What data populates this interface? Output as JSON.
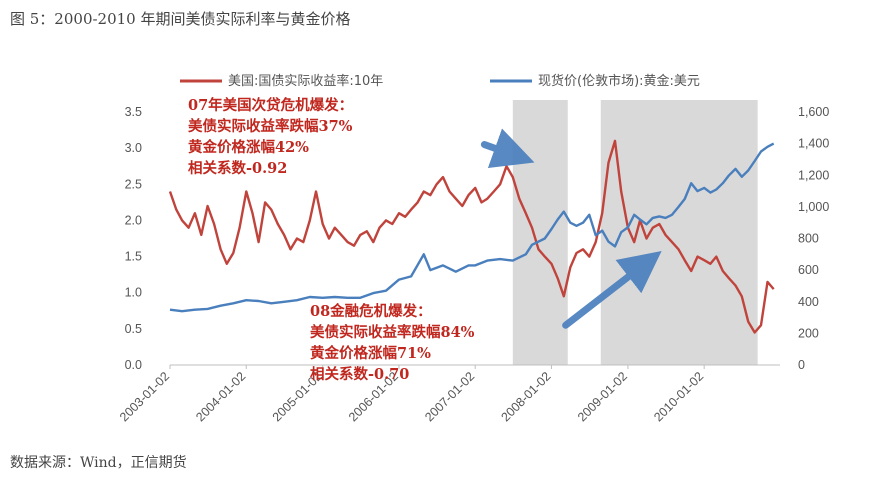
{
  "figure": {
    "title": "图 5：2000-2010 年期间美债实际利率与黄金价格",
    "source": "数据来源：Wind，正信期货"
  },
  "colors": {
    "rate": "#c0433c",
    "gold": "#4a7fbd",
    "shade": "#d9d9d9",
    "annotation": "#c0281f"
  },
  "chart_data": {
    "type": "line",
    "xlim": [
      "2003-01-02",
      "2010-12-31"
    ],
    "x_ticks": [
      "2003-01-02",
      "2004-01-02",
      "2005-01-02",
      "2006-01-02",
      "2007-01-02",
      "2008-01-02",
      "2009-01-02",
      "2010-01-02"
    ],
    "y_left": {
      "lim": [
        0,
        3.5
      ],
      "ticks": [
        "0.0",
        "0.5",
        "1.0",
        "1.5",
        "2.0",
        "2.5",
        "3.0",
        "3.5"
      ]
    },
    "y_right": {
      "lim": [
        0,
        1600
      ],
      "ticks": [
        "0",
        "200",
        "400",
        "600",
        "800",
        "1,000",
        "1,200",
        "1,400",
        "1,600"
      ]
    },
    "legend": {
      "placement": "top"
    },
    "shaded_ranges": [
      [
        "2007-07-01",
        "2008-03-20"
      ],
      [
        "2008-08-25",
        "2010-09-15"
      ]
    ],
    "series": [
      {
        "name": "美国:国债实际收益率:10年",
        "axis": "left",
        "points": [
          [
            "2003-01-02",
            2.4
          ],
          [
            "2003-02-01",
            2.15
          ],
          [
            "2003-03-01",
            2.0
          ],
          [
            "2003-04-01",
            1.9
          ],
          [
            "2003-05-01",
            2.1
          ],
          [
            "2003-06-01",
            1.8
          ],
          [
            "2003-07-01",
            2.2
          ],
          [
            "2003-08-01",
            1.95
          ],
          [
            "2003-09-01",
            1.6
          ],
          [
            "2003-10-01",
            1.4
          ],
          [
            "2003-11-01",
            1.55
          ],
          [
            "2003-12-01",
            1.9
          ],
          [
            "2004-01-02",
            2.4
          ],
          [
            "2004-02-01",
            2.1
          ],
          [
            "2004-03-01",
            1.7
          ],
          [
            "2004-04-01",
            2.25
          ],
          [
            "2004-05-01",
            2.15
          ],
          [
            "2004-06-01",
            1.95
          ],
          [
            "2004-07-01",
            1.8
          ],
          [
            "2004-08-01",
            1.6
          ],
          [
            "2004-09-01",
            1.75
          ],
          [
            "2004-10-01",
            1.7
          ],
          [
            "2004-11-01",
            2.0
          ],
          [
            "2004-12-01",
            2.4
          ],
          [
            "2005-01-02",
            1.95
          ],
          [
            "2005-02-01",
            1.75
          ],
          [
            "2005-03-01",
            1.9
          ],
          [
            "2005-04-01",
            1.8
          ],
          [
            "2005-05-01",
            1.7
          ],
          [
            "2005-06-01",
            1.65
          ],
          [
            "2005-07-01",
            1.8
          ],
          [
            "2005-08-01",
            1.85
          ],
          [
            "2005-09-01",
            1.7
          ],
          [
            "2005-10-01",
            1.9
          ],
          [
            "2005-11-01",
            2.0
          ],
          [
            "2005-12-01",
            1.95
          ],
          [
            "2006-01-02",
            2.1
          ],
          [
            "2006-02-01",
            2.05
          ],
          [
            "2006-03-01",
            2.15
          ],
          [
            "2006-04-01",
            2.25
          ],
          [
            "2006-05-01",
            2.4
          ],
          [
            "2006-06-01",
            2.35
          ],
          [
            "2006-07-01",
            2.5
          ],
          [
            "2006-08-01",
            2.6
          ],
          [
            "2006-09-01",
            2.4
          ],
          [
            "2006-10-01",
            2.3
          ],
          [
            "2006-11-01",
            2.2
          ],
          [
            "2006-12-01",
            2.35
          ],
          [
            "2007-01-02",
            2.45
          ],
          [
            "2007-02-01",
            2.25
          ],
          [
            "2007-03-01",
            2.3
          ],
          [
            "2007-04-01",
            2.4
          ],
          [
            "2007-05-01",
            2.5
          ],
          [
            "2007-06-01",
            2.75
          ],
          [
            "2007-07-01",
            2.6
          ],
          [
            "2007-08-01",
            2.3
          ],
          [
            "2007-09-01",
            2.1
          ],
          [
            "2007-10-01",
            1.9
          ],
          [
            "2007-11-01",
            1.6
          ],
          [
            "2007-12-01",
            1.5
          ],
          [
            "2008-01-02",
            1.4
          ],
          [
            "2008-02-01",
            1.2
          ],
          [
            "2008-03-01",
            0.95
          ],
          [
            "2008-04-01",
            1.35
          ],
          [
            "2008-05-01",
            1.55
          ],
          [
            "2008-06-01",
            1.6
          ],
          [
            "2008-07-01",
            1.5
          ],
          [
            "2008-08-01",
            1.7
          ],
          [
            "2008-09-01",
            2.1
          ],
          [
            "2008-10-01",
            2.8
          ],
          [
            "2008-11-01",
            3.1
          ],
          [
            "2008-12-01",
            2.4
          ],
          [
            "2009-01-02",
            1.9
          ],
          [
            "2009-02-01",
            1.7
          ],
          [
            "2009-03-01",
            2.0
          ],
          [
            "2009-04-01",
            1.75
          ],
          [
            "2009-05-01",
            1.9
          ],
          [
            "2009-06-01",
            1.95
          ],
          [
            "2009-07-01",
            1.8
          ],
          [
            "2009-08-01",
            1.7
          ],
          [
            "2009-09-01",
            1.6
          ],
          [
            "2009-10-01",
            1.45
          ],
          [
            "2009-11-01",
            1.3
          ],
          [
            "2009-12-01",
            1.5
          ],
          [
            "2010-01-02",
            1.45
          ],
          [
            "2010-02-01",
            1.4
          ],
          [
            "2010-03-01",
            1.5
          ],
          [
            "2010-04-01",
            1.3
          ],
          [
            "2010-05-01",
            1.2
          ],
          [
            "2010-06-01",
            1.1
          ],
          [
            "2010-07-01",
            0.95
          ],
          [
            "2010-08-01",
            0.6
          ],
          [
            "2010-09-01",
            0.45
          ],
          [
            "2010-10-01",
            0.55
          ],
          [
            "2010-11-01",
            1.15
          ],
          [
            "2010-12-01",
            1.05
          ]
        ]
      },
      {
        "name": "现货价(伦敦市场):黄金:美元",
        "axis": "right",
        "points": [
          [
            "2003-01-02",
            350
          ],
          [
            "2003-03-01",
            340
          ],
          [
            "2003-05-01",
            350
          ],
          [
            "2003-07-01",
            355
          ],
          [
            "2003-09-01",
            375
          ],
          [
            "2003-11-01",
            390
          ],
          [
            "2004-01-02",
            410
          ],
          [
            "2004-03-01",
            405
          ],
          [
            "2004-05-01",
            390
          ],
          [
            "2004-07-01",
            400
          ],
          [
            "2004-09-01",
            410
          ],
          [
            "2004-11-01",
            430
          ],
          [
            "2005-01-02",
            425
          ],
          [
            "2005-03-01",
            430
          ],
          [
            "2005-05-01",
            425
          ],
          [
            "2005-07-01",
            425
          ],
          [
            "2005-09-01",
            455
          ],
          [
            "2005-11-01",
            470
          ],
          [
            "2006-01-02",
            540
          ],
          [
            "2006-03-01",
            560
          ],
          [
            "2006-05-01",
            700
          ],
          [
            "2006-06-01",
            600
          ],
          [
            "2006-08-01",
            630
          ],
          [
            "2006-10-01",
            590
          ],
          [
            "2006-12-01",
            630
          ],
          [
            "2007-01-02",
            630
          ],
          [
            "2007-03-01",
            660
          ],
          [
            "2007-05-01",
            670
          ],
          [
            "2007-07-01",
            660
          ],
          [
            "2007-09-01",
            700
          ],
          [
            "2007-10-01",
            760
          ],
          [
            "2007-12-01",
            800
          ],
          [
            "2008-01-02",
            860
          ],
          [
            "2008-02-01",
            920
          ],
          [
            "2008-03-01",
            970
          ],
          [
            "2008-04-01",
            900
          ],
          [
            "2008-05-01",
            880
          ],
          [
            "2008-06-01",
            900
          ],
          [
            "2008-07-01",
            950
          ],
          [
            "2008-08-01",
            820
          ],
          [
            "2008-09-01",
            850
          ],
          [
            "2008-10-01",
            780
          ],
          [
            "2008-11-01",
            750
          ],
          [
            "2008-12-01",
            840
          ],
          [
            "2009-01-02",
            870
          ],
          [
            "2009-02-01",
            950
          ],
          [
            "2009-03-01",
            920
          ],
          [
            "2009-04-01",
            890
          ],
          [
            "2009-05-01",
            930
          ],
          [
            "2009-06-01",
            940
          ],
          [
            "2009-07-01",
            930
          ],
          [
            "2009-08-01",
            950
          ],
          [
            "2009-09-01",
            1000
          ],
          [
            "2009-10-01",
            1050
          ],
          [
            "2009-11-01",
            1150
          ],
          [
            "2009-12-01",
            1100
          ],
          [
            "2010-01-02",
            1120
          ],
          [
            "2010-02-01",
            1090
          ],
          [
            "2010-03-01",
            1110
          ],
          [
            "2010-04-01",
            1150
          ],
          [
            "2010-05-01",
            1200
          ],
          [
            "2010-06-01",
            1240
          ],
          [
            "2010-07-01",
            1190
          ],
          [
            "2010-08-01",
            1230
          ],
          [
            "2010-09-01",
            1290
          ],
          [
            "2010-10-01",
            1350
          ],
          [
            "2010-11-01",
            1380
          ],
          [
            "2010-12-01",
            1400
          ]
        ]
      }
    ],
    "annotations": [
      {
        "lines": [
          "07年美国次贷危机爆发：",
          "美债实际收益率跌幅37%",
          "黄金价格涨幅42%",
          "相关系数-0.92"
        ],
        "arrow_from": [
          "2007-02-15",
          3.05
        ],
        "arrow_to": [
          "2007-07-10",
          2.9
        ]
      },
      {
        "lines": [
          "08金融危机爆发：",
          "美债实际收益率跌幅84%",
          "黄金价格涨幅71%",
          "相关系数-0.70"
        ],
        "arrow_from": [
          "2008-03-10",
          0.55
        ],
        "arrow_to": [
          "2009-03-25",
          1.4
        ]
      }
    ]
  }
}
